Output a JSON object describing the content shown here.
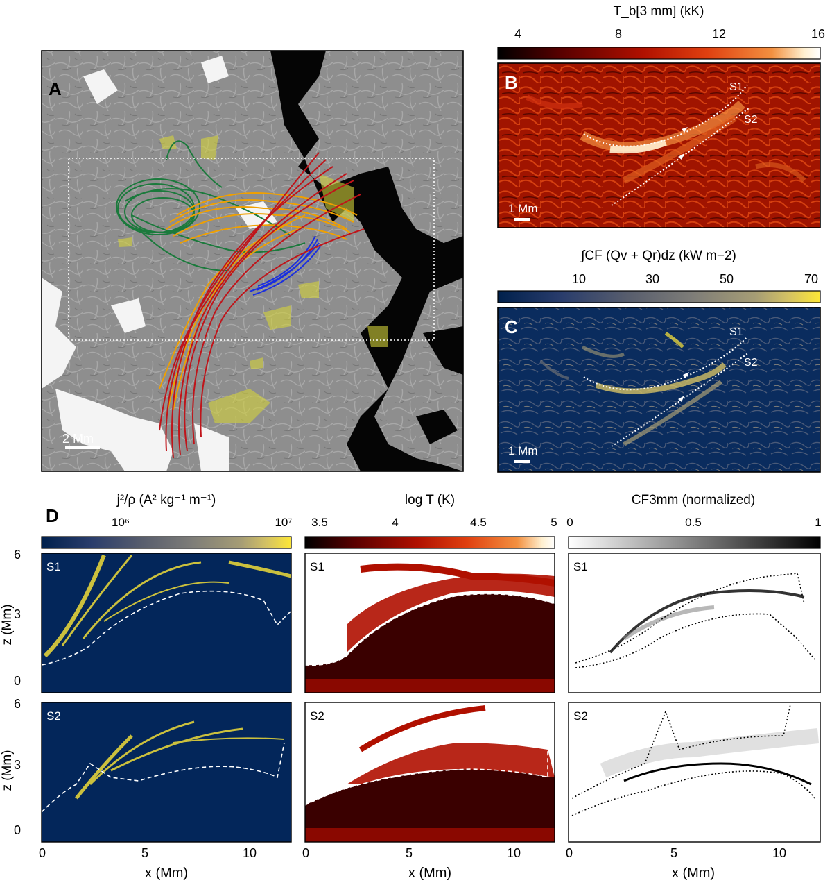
{
  "panel_a": {
    "letter": "A",
    "scalebar_label": "2 Mm",
    "line_colors": {
      "green": "#1b7a3c",
      "orange": "#f0a000",
      "red": "#c0141a",
      "blue": "#1a2ee0",
      "yellow": "#d4d23a"
    }
  },
  "panel_b": {
    "letter": "B",
    "cbar_title": "T_b[3 mm] (kK)",
    "cbar_ticks": [
      "4",
      "8",
      "12",
      "16"
    ],
    "slice1": "S1",
    "slice2": "S2",
    "scalebar_label": "1 Mm"
  },
  "panel_c": {
    "letter": "C",
    "cbar_title": "∫CF (Qv + Qr)dz (kW m−2)",
    "cbar_ticks": [
      "10",
      "30",
      "50",
      "70"
    ],
    "slice1": "S1",
    "slice2": "S2",
    "scalebar_label": "1 Mm"
  },
  "panel_d": {
    "letter": "D",
    "col1_title": "j²/ρ (A² kg⁻¹ m⁻¹)",
    "col1_ticks": [
      "10⁶",
      "10⁷"
    ],
    "col2_title": "log T (K)",
    "col2_ticks": [
      "3.5",
      "4",
      "4.5",
      "5"
    ],
    "col3_title": "CF3mm (normalized)",
    "col3_ticks": [
      "0",
      "0.5",
      "1"
    ],
    "row_labels": [
      "S1",
      "S2"
    ],
    "x_label": "x (Mm)",
    "y_label": "z (Mm)",
    "x_ticks": [
      "0",
      "5",
      "10"
    ],
    "y_ticks": [
      "0",
      "3",
      "6"
    ]
  },
  "colors": {
    "hot": [
      "#000000",
      "#5a0000",
      "#b01000",
      "#e04010",
      "#f39040",
      "#fff0d0",
      "#ffffff"
    ],
    "cividis": [
      "#00204c",
      "#2a3d6c",
      "#575d6d",
      "#7d7c78",
      "#a69d75",
      "#d3c164",
      "#fde737"
    ],
    "gray": [
      "#ffffff",
      "#000000"
    ]
  }
}
